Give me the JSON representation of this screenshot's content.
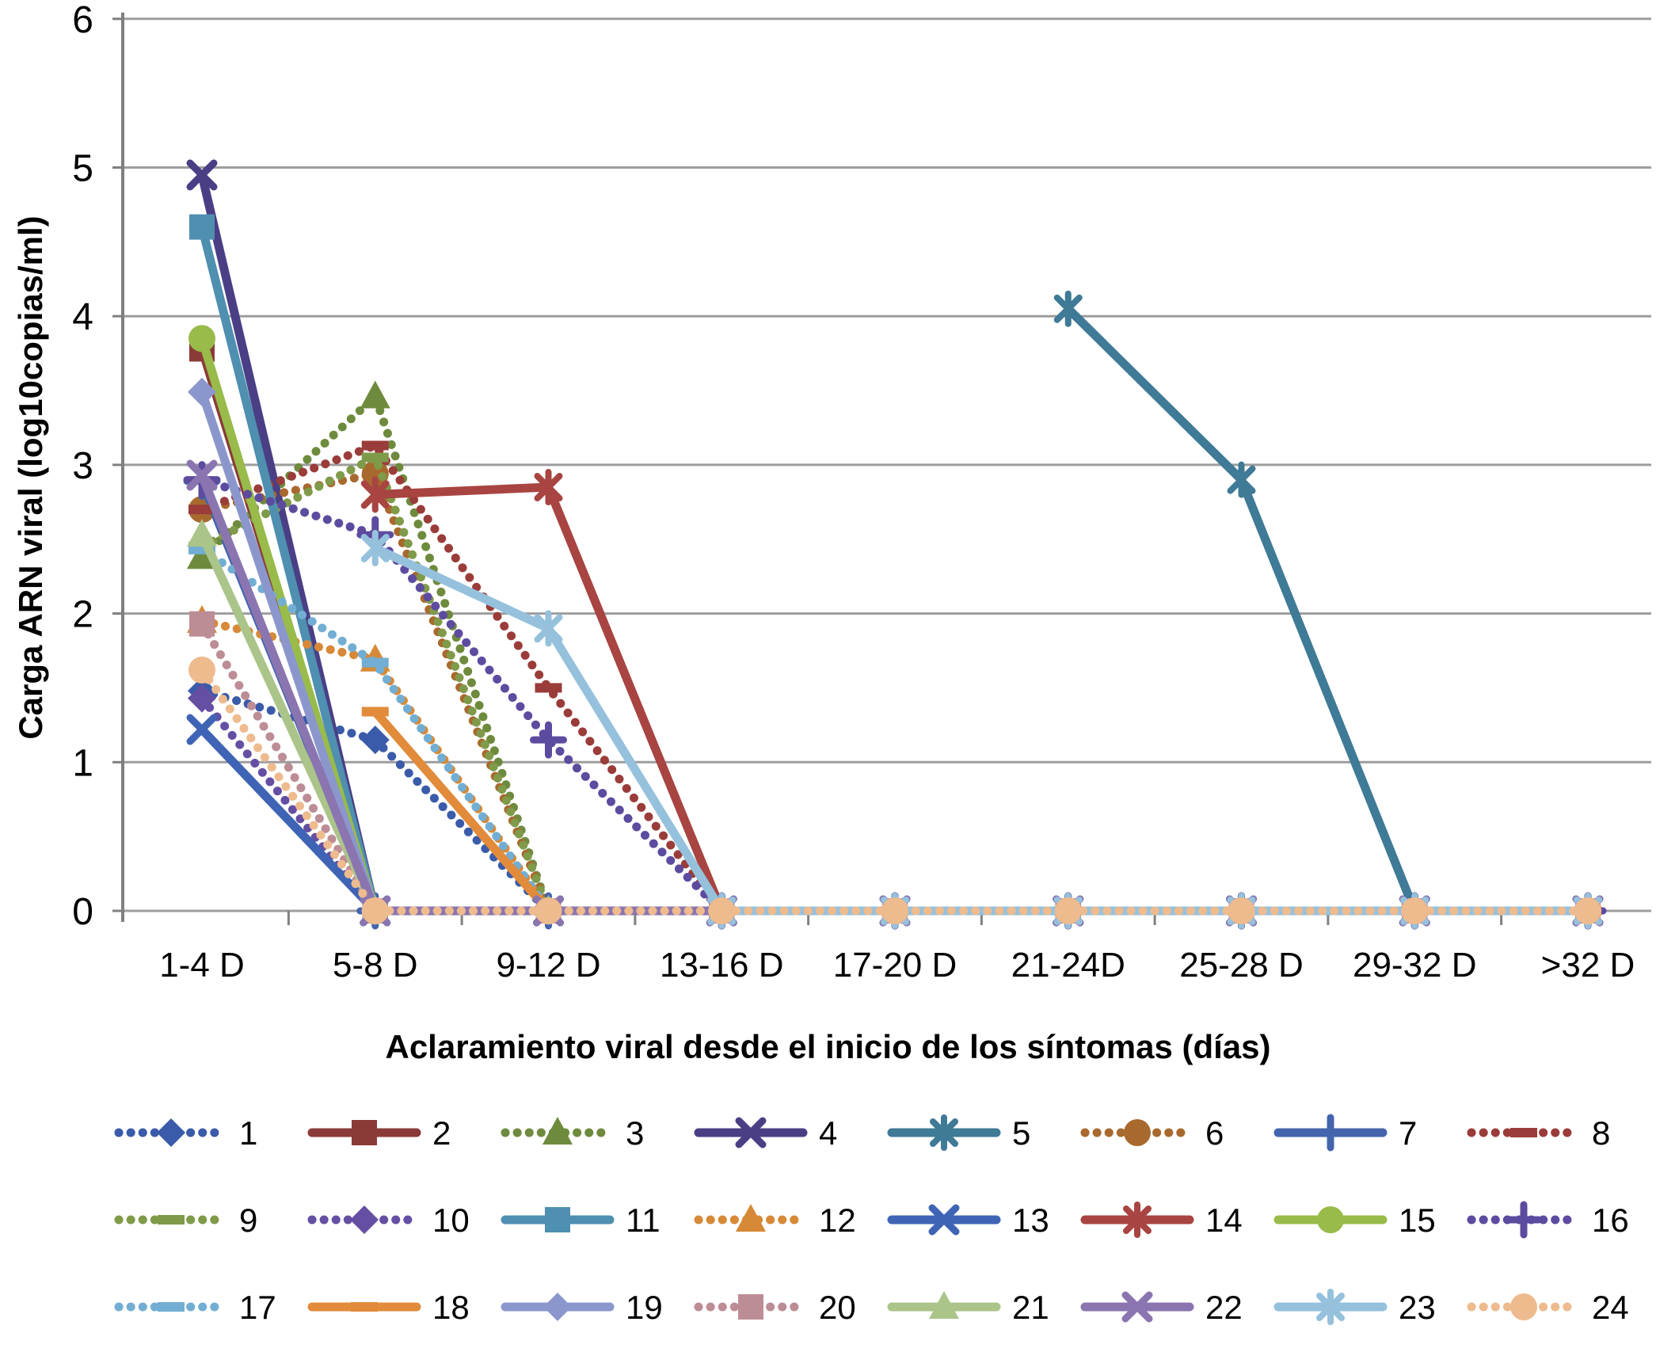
{
  "chart_data": {
    "type": "line",
    "title": "",
    "xlabel": "Aclaramiento viral desde el inicio de los síntomas (días)",
    "ylabel": "Carga ARN viral (log10copias/ml)",
    "ylim": [
      0,
      6
    ],
    "yticks": [
      0,
      1,
      2,
      3,
      4,
      5,
      6
    ],
    "grid": "horizontal-gridlines",
    "legend_position": "bottom-3-rows",
    "categories": [
      "1-4 D",
      "5-8 D",
      "9-12 D",
      "13-16 D",
      "17-20 D",
      "21-24D",
      "25-28 D",
      "29-32 D",
      ">32 D"
    ],
    "series": [
      {
        "name": "1",
        "color": "#3A5BA9",
        "marker": "diamond",
        "line": "dotted",
        "values": [
          1.48,
          1.15,
          0,
          0,
          0,
          0,
          0,
          0,
          0
        ]
      },
      {
        "name": "2",
        "color": "#8A3B38",
        "marker": "square",
        "line": "solid",
        "values": [
          3.78,
          0,
          0,
          0,
          0,
          0,
          0,
          0,
          0
        ]
      },
      {
        "name": "3",
        "color": "#6E8B3D",
        "marker": "triangle",
        "line": "dotted",
        "values": [
          2.38,
          3.46,
          0,
          0,
          0,
          0,
          0,
          0,
          0
        ]
      },
      {
        "name": "4",
        "color": "#4A3F85",
        "marker": "x",
        "line": "solid",
        "values": [
          4.95,
          0,
          0,
          0,
          0,
          0,
          0,
          0,
          0
        ]
      },
      {
        "name": "5",
        "color": "#3F7A96",
        "marker": "asterisk",
        "line": "solid",
        "values": [
          null,
          null,
          null,
          null,
          null,
          4.05,
          2.9,
          0,
          0
        ]
      },
      {
        "name": "6",
        "color": "#A8692E",
        "marker": "circle",
        "line": "dotted",
        "values": [
          2.7,
          2.94,
          0,
          0,
          0,
          0,
          0,
          0,
          0
        ]
      },
      {
        "name": "7",
        "color": "#4465AE",
        "marker": "plus",
        "line": "solid",
        "values": [
          2.89,
          0,
          0,
          0,
          0,
          0,
          0,
          0,
          0
        ]
      },
      {
        "name": "8",
        "color": "#9A3C39",
        "marker": "dash",
        "line": "dotted",
        "values": [
          2.7,
          3.13,
          1.5,
          0,
          0,
          0,
          0,
          0,
          0
        ]
      },
      {
        "name": "9",
        "color": "#7F9A49",
        "marker": "dash",
        "line": "dotted",
        "values": [
          2.45,
          3.05,
          0,
          0,
          0,
          0,
          0,
          0,
          0
        ]
      },
      {
        "name": "10",
        "color": "#654FA3",
        "marker": "diamond",
        "line": "dotted",
        "values": [
          1.43,
          0,
          0,
          0,
          0,
          0,
          0,
          0,
          0
        ]
      },
      {
        "name": "11",
        "color": "#4F8FB0",
        "marker": "square",
        "line": "solid",
        "values": [
          4.6,
          0,
          0,
          0,
          0,
          0,
          0,
          0,
          0
        ]
      },
      {
        "name": "12",
        "color": "#D78937",
        "marker": "triangle",
        "line": "dotted",
        "values": [
          1.95,
          1.69,
          0,
          0,
          0,
          0,
          0,
          0,
          0
        ]
      },
      {
        "name": "13",
        "color": "#3F64B5",
        "marker": "x",
        "line": "solid",
        "values": [
          1.22,
          0,
          0,
          0,
          0,
          0,
          0,
          0,
          0
        ]
      },
      {
        "name": "14",
        "color": "#A84441",
        "marker": "asterisk",
        "line": "solid",
        "values": [
          null,
          2.8,
          2.85,
          0,
          0,
          0,
          0,
          0,
          0
        ]
      },
      {
        "name": "15",
        "color": "#98BB4A",
        "marker": "circle",
        "line": "solid",
        "values": [
          3.85,
          0,
          0,
          0,
          0,
          0,
          0,
          0,
          0
        ]
      },
      {
        "name": "16",
        "color": "#5D4B9F",
        "marker": "plus",
        "line": "dotted",
        "values": [
          2.9,
          2.53,
          1.15,
          0,
          0,
          0,
          0,
          0,
          0
        ]
      },
      {
        "name": "17",
        "color": "#72AED3",
        "marker": "dash",
        "line": "dotted",
        "values": [
          2.43,
          1.67,
          0,
          0,
          0,
          0,
          0,
          0,
          0
        ]
      },
      {
        "name": "18",
        "color": "#E18B3B",
        "marker": "dash",
        "line": "solid",
        "values": [
          null,
          1.34,
          0,
          0,
          0,
          0,
          0,
          0,
          0
        ]
      },
      {
        "name": "19",
        "color": "#8B97CC",
        "marker": "diamond",
        "line": "solid",
        "values": [
          3.49,
          0,
          0,
          0,
          0,
          0,
          0,
          0,
          0
        ]
      },
      {
        "name": "20",
        "color": "#BD8D96",
        "marker": "square",
        "line": "dotted",
        "values": [
          1.93,
          0,
          0,
          0,
          0,
          0,
          0,
          0,
          0
        ]
      },
      {
        "name": "21",
        "color": "#ABC489",
        "marker": "triangle",
        "line": "solid",
        "values": [
          2.53,
          0,
          0,
          0,
          0,
          0,
          0,
          0,
          0
        ]
      },
      {
        "name": "22",
        "color": "#8A75B0",
        "marker": "x",
        "line": "solid",
        "values": [
          2.93,
          0,
          0,
          0,
          0,
          0,
          0,
          0,
          0
        ]
      },
      {
        "name": "23",
        "color": "#95C1DD",
        "marker": "asterisk",
        "line": "solid",
        "values": [
          null,
          2.44,
          1.9,
          0,
          0,
          0,
          0,
          0,
          0
        ]
      },
      {
        "name": "24",
        "color": "#EEBB8E",
        "marker": "circle",
        "line": "dotted",
        "values": [
          1.62,
          0,
          0,
          0,
          0,
          0,
          0,
          0,
          0
        ]
      }
    ]
  },
  "style_colors": {
    "gridline": "#9D9D9D",
    "axis": "#808080",
    "text": "#000000",
    "background": "#FFFFFF"
  }
}
